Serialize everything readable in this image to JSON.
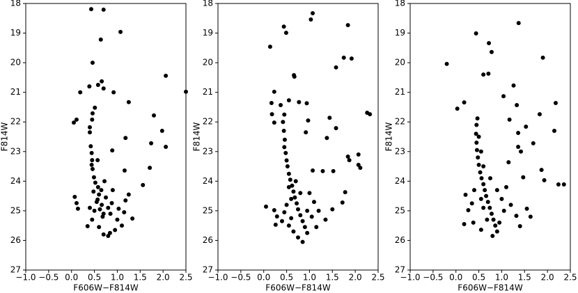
{
  "chart_data": [
    {
      "type": "scatter",
      "xlabel": "F606W−F814W",
      "ylabel": "F814W",
      "color": "#000000",
      "xlim": [
        -1.0,
        2.5
      ],
      "ylim": [
        27,
        18
      ],
      "xticks": [
        {
          "value": -1.0,
          "label": "−1.0"
        },
        {
          "value": -0.5,
          "label": "−0.5"
        },
        {
          "value": 0.0,
          "label": "0.0"
        },
        0.5,
        {
          "value": 1.0,
          "label": "1.0"
        },
        1.5,
        {
          "value": 2.0,
          "label": "2.0"
        },
        2.5
      ],
      "yticks": [
        18,
        19,
        20,
        21,
        22,
        23,
        24,
        25,
        26,
        27
      ],
      "x": [
        0.43,
        0.7,
        1.07,
        0.64,
        0.46,
        2.06,
        0.66,
        0.58,
        0.39,
        0.7,
        2.5,
        0.19,
        0.92,
        1.25,
        0.51,
        0.46,
        0.45,
        0.05,
        0.11,
        1.8,
        0.4,
        0.4,
        1.18,
        1.98,
        2.06,
        1.74,
        0.42,
        0.44,
        0.45,
        0.44,
        0.46,
        0.89,
        0.57,
        1.16,
        1.71,
        0.49,
        1.56,
        0.52,
        0.58,
        0.65,
        0.6,
        0.57,
        0.66,
        0.62,
        0.7,
        0.55,
        0.75,
        0.8,
        0.68,
        0.5,
        0.07,
        0.11,
        0.14,
        0.35,
        0.88,
        1.03,
        1.18,
        1.33,
        1.1,
        0.95,
        0.8,
        0.7,
        0.84,
        0.45,
        0.6,
        1.0,
        1.25,
        0.9,
        0.72,
        0.48,
        0.4,
        0.85,
        1.15
      ],
      "y": [
        18.19,
        18.21,
        18.96,
        19.22,
        20.0,
        20.44,
        20.63,
        20.75,
        20.8,
        20.87,
        20.98,
        21.0,
        21.0,
        21.33,
        21.52,
        21.71,
        21.92,
        22.02,
        21.92,
        21.78,
        22.18,
        22.35,
        22.54,
        22.3,
        22.84,
        22.72,
        22.82,
        23.05,
        23.29,
        23.45,
        23.59,
        22.96,
        23.29,
        23.64,
        23.55,
        23.87,
        24.13,
        24.05,
        24.2,
        24.3,
        24.45,
        24.62,
        24.8,
        24.95,
        25.1,
        24.7,
        24.55,
        24.9,
        25.2,
        25.0,
        24.53,
        24.74,
        24.93,
        25.52,
        24.74,
        24.93,
        24.65,
        25.26,
        25.5,
        25.65,
        25.85,
        25.8,
        25.75,
        25.3,
        25.55,
        25.3,
        24.45,
        24.3,
        24.0,
        24.35,
        24.9,
        25.1,
        25.05
      ]
    },
    {
      "type": "scatter",
      "xlabel": "F606W−F814W",
      "ylabel": "F814W",
      "color": "#000000",
      "xlim": [
        -1.0,
        2.5
      ],
      "ylim": [
        27,
        18
      ],
      "xticks": [
        {
          "value": -1.0,
          "label": "−1.0"
        },
        {
          "value": -0.5,
          "label": "−0.5"
        },
        {
          "value": 0.0,
          "label": "0.0"
        },
        0.5,
        {
          "value": 1.0,
          "label": "1.0"
        },
        1.5,
        {
          "value": 2.0,
          "label": "2.0"
        },
        2.5
      ],
      "yticks": [
        18,
        19,
        20,
        21,
        22,
        23,
        24,
        25,
        26,
        27
      ],
      "x": [
        1.07,
        1.03,
        0.44,
        0.49,
        1.84,
        0.14,
        1.75,
        1.92,
        1.58,
        0.66,
        0.67,
        0.23,
        0.55,
        0.77,
        0.94,
        0.17,
        0.37,
        0.18,
        0.23,
        2.26,
        2.32,
        1.44,
        0.97,
        0.92,
        1.58,
        1.38,
        0.45,
        0.42,
        0.44,
        0.46,
        0.45,
        0.48,
        0.5,
        0.52,
        0.55,
        0.58,
        0.62,
        0.65,
        0.68,
        0.72,
        0.75,
        0.8,
        0.85,
        0.9,
        0.95,
        0.85,
        0.75,
        0.6,
        0.55,
        0.7,
        0.8,
        1.84,
        1.87,
        2.07,
        2.07,
        2.11,
        1.07,
        1.29,
        1.52,
        1.78,
        1.72,
        0.05,
        0.23,
        0.29,
        0.26,
        0.4,
        0.55,
        0.65,
        1.05,
        1.2,
        1.35,
        1.5,
        1.1,
        1.0,
        0.95,
        0.6,
        0.45,
        1.15,
        0.5
      ],
      "y": [
        18.33,
        18.54,
        18.78,
        18.99,
        18.73,
        19.46,
        19.83,
        19.86,
        20.16,
        20.42,
        20.47,
        20.98,
        21.27,
        21.33,
        21.37,
        21.36,
        21.43,
        21.74,
        22.02,
        21.69,
        21.74,
        21.86,
        21.95,
        22.35,
        22.21,
        22.54,
        21.75,
        22.0,
        22.3,
        22.6,
        22.85,
        23.05,
        23.3,
        23.5,
        23.75,
        23.95,
        24.15,
        24.35,
        24.55,
        24.75,
        24.95,
        25.15,
        25.35,
        25.55,
        25.75,
        26.05,
        25.9,
        24.6,
        24.2,
        24.0,
        24.4,
        23.17,
        23.29,
        23.1,
        23.45,
        23.55,
        23.64,
        23.66,
        23.66,
        24.37,
        24.72,
        24.86,
        24.98,
        25.19,
        25.47,
        25.35,
        25.5,
        25.7,
        25.2,
        25.0,
        25.3,
        24.95,
        24.7,
        24.4,
        25.0,
        25.25,
        25.05,
        25.55,
        24.8
      ]
    },
    {
      "type": "scatter",
      "xlabel": "F606W−F814W",
      "ylabel": "F814W",
      "color": "#000000",
      "xlim": [
        -1.0,
        2.5
      ],
      "ylim": [
        27,
        18
      ],
      "xticks": [
        {
          "value": -1.0,
          "label": "−1.0"
        },
        {
          "value": -0.5,
          "label": "−0.5"
        },
        {
          "value": 0.0,
          "label": "0.0"
        },
        0.5,
        {
          "value": 1.0,
          "label": "1.0"
        },
        1.5,
        {
          "value": 2.0,
          "label": "2.0"
        },
        2.5
      ],
      "yticks": [
        18,
        19,
        20,
        21,
        22,
        23,
        24,
        25,
        26,
        27
      ],
      "x": [
        1.37,
        0.44,
        0.72,
        0.78,
        -0.2,
        1.9,
        0.6,
        0.71,
        1.26,
        1.04,
        0.18,
        0.03,
        1.33,
        2.18,
        0.47,
        1.83,
        1.17,
        1.53,
        1.36,
        2.15,
        1.69,
        1.36,
        1.42,
        1.15,
        1.87,
        1.47,
        1.93,
        2.24,
        2.36,
        0.21,
        0.27,
        0.18,
        0.38,
        0.55,
        1.32,
        1.4,
        1.63,
        1.55,
        0.45,
        0.44,
        0.45,
        0.46,
        0.48,
        0.5,
        0.53,
        0.56,
        0.6,
        0.63,
        0.66,
        0.7,
        0.74,
        0.78,
        0.82,
        0.86,
        0.9,
        0.8,
        0.55,
        0.6,
        0.68,
        1.0,
        1.1,
        1.2,
        1.05,
        0.95,
        0.4,
        0.35,
        0.6,
        0.75,
        0.9,
        0.5,
        0.55
      ],
      "y": [
        18.66,
        19.01,
        19.34,
        19.64,
        20.04,
        19.83,
        20.4,
        20.37,
        20.77,
        21.13,
        21.34,
        21.55,
        21.43,
        21.36,
        21.88,
        21.74,
        21.92,
        22.16,
        22.37,
        22.3,
        22.72,
        22.84,
        23.0,
        23.36,
        23.62,
        23.87,
        23.97,
        24.11,
        24.11,
        24.46,
        24.98,
        25.45,
        25.4,
        25.64,
        25.17,
        25.52,
        25.2,
        24.93,
        22.1,
        22.4,
        22.7,
        22.95,
        23.2,
        23.45,
        23.7,
        23.9,
        24.1,
        24.3,
        24.5,
        24.7,
        24.9,
        25.1,
        25.3,
        25.5,
        25.7,
        25.85,
        24.6,
        24.9,
        25.3,
        24.6,
        24.2,
        24.8,
        25.0,
        25.4,
        24.3,
        24.75,
        23.5,
        23.9,
        24.3,
        22.5,
        23.0
      ]
    }
  ]
}
